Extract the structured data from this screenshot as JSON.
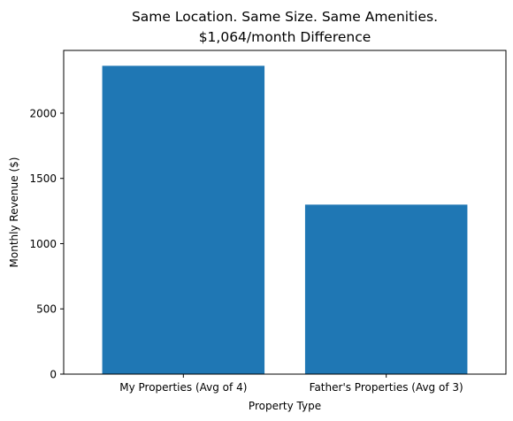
{
  "chart_data": {
    "type": "bar",
    "title": "Same Location. Same Size. Same Amenities.",
    "subtitle": "$1,064/month Difference",
    "xlabel": "Property Type",
    "ylabel": "Monthly Revenue ($)",
    "categories": [
      "My Properties (Avg of 4)",
      "Father's Properties (Avg of 3)"
    ],
    "values": [
      2363,
      1299
    ],
    "ylim": [
      0,
      2481
    ],
    "yticks": [
      0,
      500,
      1000,
      1500,
      2000
    ],
    "bar_color": "#1f77b4",
    "grid": false,
    "legend": "none"
  }
}
